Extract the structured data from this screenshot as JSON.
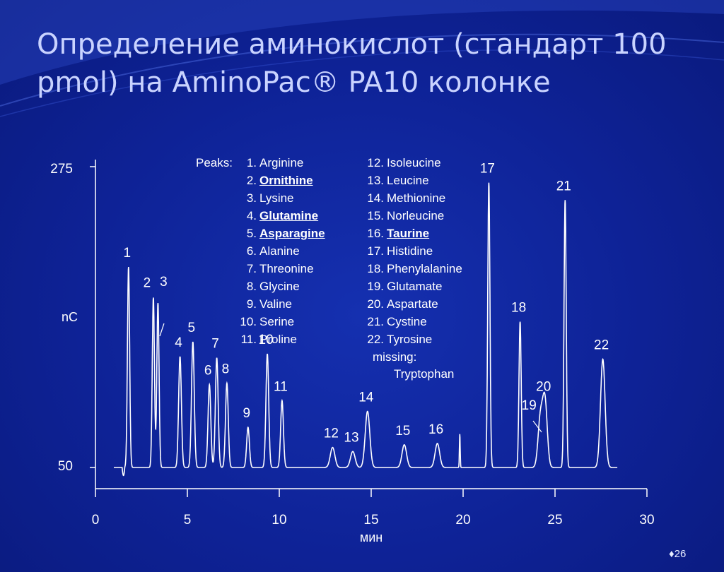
{
  "slide": {
    "title": "Определение аминокислот (стандарт 100 pmol) на AminoPac® PA10 колонке",
    "page_number": "26",
    "page_marker": "♦"
  },
  "chart_data": {
    "type": "line",
    "xlabel": "мин",
    "ylabel": "nC",
    "xlim": [
      0,
      30
    ],
    "ylim": [
      50,
      275
    ],
    "x_ticks": [
      0,
      5,
      10,
      15,
      20,
      25,
      30
    ],
    "y_tick_labels": [
      "275",
      "50"
    ],
    "baseline": 50,
    "peaks": [
      {
        "label": "1",
        "x": 1.8,
        "y": 200
      },
      {
        "label": "2",
        "x": 3.15,
        "y": 177
      },
      {
        "label": "3",
        "x": 3.4,
        "y": 173
      },
      {
        "label": "4",
        "x": 4.6,
        "y": 133
      },
      {
        "label": "5",
        "x": 5.3,
        "y": 144
      },
      {
        "label": "6",
        "x": 6.2,
        "y": 112
      },
      {
        "label": "7",
        "x": 6.6,
        "y": 132
      },
      {
        "label": "8",
        "x": 7.15,
        "y": 113
      },
      {
        "label": "9",
        "x": 8.3,
        "y": 80
      },
      {
        "label": "10",
        "x": 9.35,
        "y": 135
      },
      {
        "label": "11",
        "x": 10.15,
        "y": 100
      },
      {
        "label": "12",
        "x": 12.9,
        "y": 65
      },
      {
        "label": "13",
        "x": 14.0,
        "y": 62
      },
      {
        "label": "14",
        "x": 14.8,
        "y": 92
      },
      {
        "label": "15",
        "x": 16.8,
        "y": 67
      },
      {
        "label": "16",
        "x": 18.6,
        "y": 68
      },
      {
        "label": "17",
        "x": 21.4,
        "y": 263
      },
      {
        "label": "18",
        "x": 23.1,
        "y": 159
      },
      {
        "label": "19",
        "x": 24.2,
        "y": 86
      },
      {
        "label": "20",
        "x": 24.45,
        "y": 100
      },
      {
        "label": "21",
        "x": 25.55,
        "y": 250
      },
      {
        "label": "22",
        "x": 27.6,
        "y": 131
      }
    ],
    "legend": {
      "title": "Peaks:",
      "column1": [
        {
          "num": "1.",
          "name": "Arginine",
          "bold": false
        },
        {
          "num": "2.",
          "name": "Ornithine",
          "bold": true
        },
        {
          "num": "3.",
          "name": "Lysine",
          "bold": false
        },
        {
          "num": "4.",
          "name": "Glutamine",
          "bold": true
        },
        {
          "num": "5.",
          "name": "Asparagine",
          "bold": true
        },
        {
          "num": "6.",
          "name": "Alanine",
          "bold": false
        },
        {
          "num": "7.",
          "name": "Threonine",
          "bold": false
        },
        {
          "num": "8.",
          "name": "Glycine",
          "bold": false
        },
        {
          "num": "9.",
          "name": "Valine",
          "bold": false
        },
        {
          "num": "10.",
          "name": "Serine",
          "bold": false
        },
        {
          "num": "11.",
          "name": "Proline",
          "bold": false
        }
      ],
      "column2": [
        {
          "num": "12.",
          "name": "Isoleucine",
          "bold": false
        },
        {
          "num": "13.",
          "name": "Leucine",
          "bold": false
        },
        {
          "num": "14.",
          "name": "Methionine",
          "bold": false
        },
        {
          "num": "15.",
          "name": "Norleucine",
          "bold": false
        },
        {
          "num": "16.",
          "name": "Taurine",
          "bold": true
        },
        {
          "num": "17.",
          "name": "Histidine",
          "bold": false
        },
        {
          "num": "18.",
          "name": "Phenylalanine",
          "bold": false
        },
        {
          "num": "19.",
          "name": "Glutamate",
          "bold": false
        },
        {
          "num": "20.",
          "name": "Aspartate",
          "bold": false
        },
        {
          "num": "21.",
          "name": "Cystine",
          "bold": false
        },
        {
          "num": "22.",
          "name": "Tyrosine",
          "bold": false
        }
      ],
      "missing_label": "missing:",
      "missing_item": "Tryptophan"
    }
  }
}
